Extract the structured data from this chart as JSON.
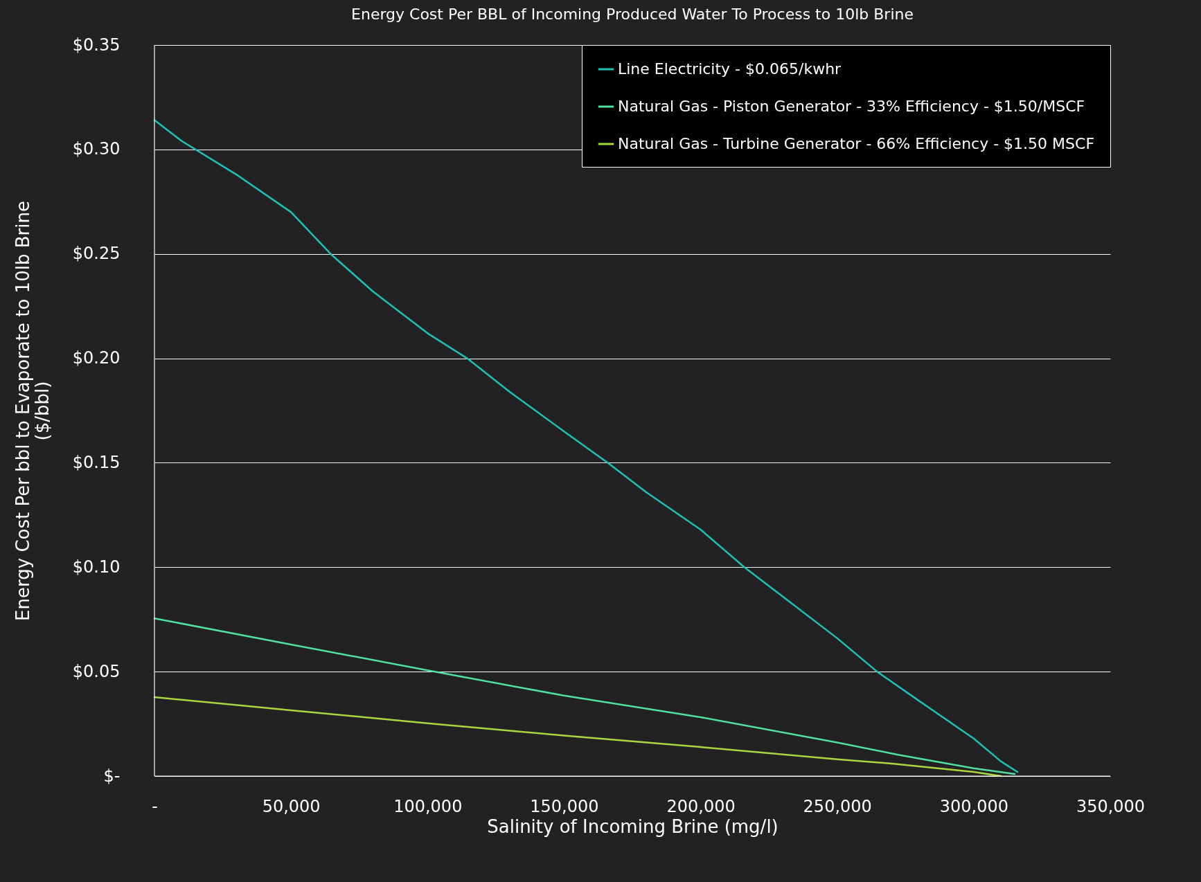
{
  "chart_data": {
    "type": "line",
    "title": "Energy Cost Per BBL of Incoming Produced Water To Process to 10lb Brine",
    "xlabel": "Salinity of Incoming Brine (mg/l)",
    "ylabel": "Energy Cost Per bbl to Evaporate to 10lb Brine\n($/bbl)",
    "series": [
      {
        "name": "Line Electricity - $0.065/kwhr",
        "color": "#1fc0b8",
        "x": [
          0,
          10000,
          30000,
          50000,
          64500,
          80000,
          100000,
          114500,
          130000,
          150000,
          166000,
          180000,
          200000,
          216000,
          230000,
          250000,
          264600,
          280000,
          300000,
          310000,
          316000
        ],
        "values": [
          0.314,
          0.304,
          0.288,
          0.27,
          0.25,
          0.232,
          0.212,
          0.2,
          0.184,
          0.165,
          0.15,
          0.136,
          0.118,
          0.1,
          0.086,
          0.066,
          0.05,
          0.036,
          0.018,
          0.007,
          0.002
        ]
      },
      {
        "name": "Natural Gas - Piston Generator - 33% Efficiency - $1.50/MSCF",
        "color": "#50e0a0",
        "x": [
          0,
          50000,
          100000,
          150000,
          200000,
          250000,
          272000,
          300000,
          315000
        ],
        "values": [
          0.0755,
          0.063,
          0.0506,
          0.0385,
          0.0282,
          0.0161,
          0.0103,
          0.0037,
          0.001
        ]
      },
      {
        "name": "Natural Gas - Turbine Generator - 66% Efficiency - $1.50 MSCF",
        "color": "#a8d840",
        "x": [
          0,
          50000,
          100000,
          150000,
          200000,
          250000,
          270000,
          300000,
          310000
        ],
        "values": [
          0.0378,
          0.0315,
          0.0253,
          0.0194,
          0.0139,
          0.008,
          0.006,
          0.002,
          0.0
        ]
      }
    ],
    "xlim": [
      0,
      350000
    ],
    "ylim": [
      0,
      0.35
    ],
    "xticks": [
      {
        "value": 0,
        "label": "-"
      },
      {
        "value": 50000,
        "label": "50,000"
      },
      {
        "value": 100000,
        "label": "100,000"
      },
      {
        "value": 150000,
        "label": "150,000"
      },
      {
        "value": 200000,
        "label": "200,000"
      },
      {
        "value": 250000,
        "label": "250,000"
      },
      {
        "value": 300000,
        "label": "300,000"
      },
      {
        "value": 350000,
        "label": "350,000"
      }
    ],
    "yticks": [
      {
        "value": 0,
        "label": "$-"
      },
      {
        "value": 0.05,
        "label": "$0.05"
      },
      {
        "value": 0.1,
        "label": "$0.10"
      },
      {
        "value": 0.15,
        "label": "$0.15"
      },
      {
        "value": 0.2,
        "label": "$0.20"
      },
      {
        "value": 0.25,
        "label": "$0.25"
      },
      {
        "value": 0.3,
        "label": "$0.30"
      },
      {
        "value": 0.35,
        "label": "$0.35"
      }
    ],
    "grid": "y",
    "legend": "top right",
    "marker": "none",
    "line_style": "solid"
  }
}
